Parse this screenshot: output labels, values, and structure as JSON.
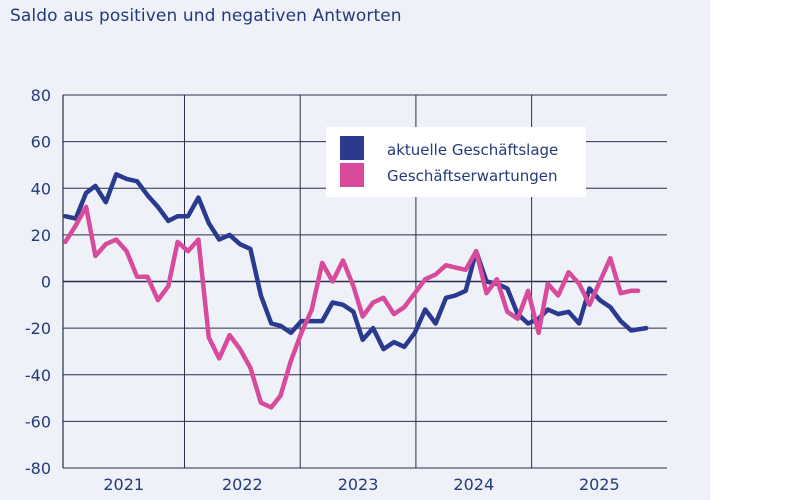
{
  "chart_data": {
    "type": "line",
    "title": "Saldo aus positiven und negativen Antworten",
    "xlabel": "",
    "ylabel": "",
    "ylim": [
      -80,
      80
    ],
    "yticks": [
      80,
      60,
      40,
      20,
      0,
      -20,
      -40,
      -60,
      -80
    ],
    "year_labels": [
      "2021",
      "2022",
      "2023",
      "2024",
      "2025"
    ],
    "x_range": [
      2020.45,
      2025.67
    ],
    "year_divider_positions": [
      2021.5,
      2022.5,
      2023.5,
      2024.5
    ],
    "legend_position": "top-right",
    "colors": {
      "axis": "#243a7a",
      "grid": "#2b2f4a"
    },
    "series": [
      {
        "name": "aktuelle Geschäftslage",
        "color": "#2a3a8f",
        "points": [
          [
            2020.47,
            28
          ],
          [
            2020.56,
            27
          ],
          [
            2020.65,
            38
          ],
          [
            2020.73,
            41
          ],
          [
            2020.82,
            34
          ],
          [
            2020.91,
            46
          ],
          [
            2021.0,
            44
          ],
          [
            2021.09,
            43
          ],
          [
            2021.18,
            37
          ],
          [
            2021.27,
            32
          ],
          [
            2021.36,
            26
          ],
          [
            2021.44,
            28
          ],
          [
            2021.53,
            28
          ],
          [
            2021.62,
            36
          ],
          [
            2021.71,
            25
          ],
          [
            2021.8,
            18
          ],
          [
            2021.89,
            20
          ],
          [
            2021.98,
            16
          ],
          [
            2022.07,
            14
          ],
          [
            2022.16,
            -6
          ],
          [
            2022.25,
            -18
          ],
          [
            2022.33,
            -19
          ],
          [
            2022.42,
            -22
          ],
          [
            2022.51,
            -17
          ],
          [
            2022.6,
            -17
          ],
          [
            2022.69,
            -17
          ],
          [
            2022.78,
            -9
          ],
          [
            2022.87,
            -10
          ],
          [
            2022.96,
            -13
          ],
          [
            2023.04,
            -25
          ],
          [
            2023.13,
            -20
          ],
          [
            2023.22,
            -29
          ],
          [
            2023.31,
            -26
          ],
          [
            2023.4,
            -28
          ],
          [
            2023.49,
            -22
          ],
          [
            2023.58,
            -12
          ],
          [
            2023.67,
            -18
          ],
          [
            2023.76,
            -7
          ],
          [
            2023.84,
            -6
          ],
          [
            2023.93,
            -4
          ],
          [
            2024.02,
            13
          ],
          [
            2024.11,
            0
          ],
          [
            2024.2,
            -1
          ],
          [
            2024.29,
            -3
          ],
          [
            2024.38,
            -14
          ],
          [
            2024.47,
            -18
          ],
          [
            2024.56,
            -16
          ],
          [
            2024.64,
            -12
          ],
          [
            2024.73,
            -14
          ],
          [
            2024.82,
            -13
          ],
          [
            2024.91,
            -18
          ],
          [
            2025.0,
            -3
          ],
          [
            2025.09,
            -8
          ],
          [
            2025.18,
            -11
          ],
          [
            2025.27,
            -17
          ],
          [
            2025.36,
            -21
          ],
          [
            2025.49,
            -20
          ]
        ]
      },
      {
        "name": "Geschäftserwartungen",
        "color": "#d84a9c",
        "points": [
          [
            2020.47,
            17
          ],
          [
            2020.56,
            24
          ],
          [
            2020.65,
            32
          ],
          [
            2020.73,
            11
          ],
          [
            2020.82,
            16
          ],
          [
            2020.91,
            18
          ],
          [
            2021.0,
            13
          ],
          [
            2021.09,
            2
          ],
          [
            2021.18,
            2
          ],
          [
            2021.27,
            -8
          ],
          [
            2021.36,
            -2
          ],
          [
            2021.44,
            17
          ],
          [
            2021.53,
            13
          ],
          [
            2021.62,
            18
          ],
          [
            2021.71,
            -24
          ],
          [
            2021.8,
            -33
          ],
          [
            2021.89,
            -23
          ],
          [
            2021.98,
            -29
          ],
          [
            2022.07,
            -37
          ],
          [
            2022.16,
            -52
          ],
          [
            2022.25,
            -54
          ],
          [
            2022.33,
            -49
          ],
          [
            2022.42,
            -34
          ],
          [
            2022.51,
            -22
          ],
          [
            2022.6,
            -12
          ],
          [
            2022.69,
            8
          ],
          [
            2022.78,
            0
          ],
          [
            2022.87,
            9
          ],
          [
            2022.96,
            -2
          ],
          [
            2023.04,
            -15
          ],
          [
            2023.13,
            -9
          ],
          [
            2023.22,
            -7
          ],
          [
            2023.31,
            -14
          ],
          [
            2023.4,
            -11
          ],
          [
            2023.49,
            -5
          ],
          [
            2023.58,
            1
          ],
          [
            2023.67,
            3
          ],
          [
            2023.76,
            7
          ],
          [
            2023.84,
            6
          ],
          [
            2023.93,
            5
          ],
          [
            2024.02,
            13
          ],
          [
            2024.11,
            -5
          ],
          [
            2024.2,
            1
          ],
          [
            2024.29,
            -13
          ],
          [
            2024.38,
            -16
          ],
          [
            2024.47,
            -4
          ],
          [
            2024.56,
            -22
          ],
          [
            2024.64,
            -1
          ],
          [
            2024.73,
            -6
          ],
          [
            2024.82,
            4
          ],
          [
            2024.91,
            -1
          ],
          [
            2025.0,
            -10
          ],
          [
            2025.09,
            0
          ],
          [
            2025.18,
            10
          ],
          [
            2025.27,
            -5
          ],
          [
            2025.36,
            -4
          ],
          [
            2025.42,
            -4
          ]
        ]
      }
    ]
  }
}
